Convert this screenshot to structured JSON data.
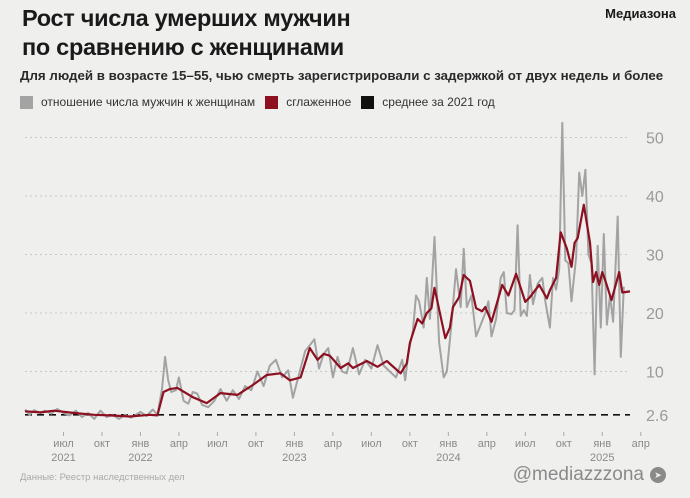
{
  "header": {
    "title_line1": "Рост числа умерших мужчин",
    "title_line2": "по сравнению с женщинами",
    "brand": "Медиазона",
    "subtitle": "Для людей в возрасте 15–55, чью смерть зарегистрировали с задержкой от двух недель и более"
  },
  "footer": {
    "source": "Данные: Реестр наследственных дел",
    "handle": "@mediazzzona",
    "icon": "telegram-icon"
  },
  "colors": {
    "raw": "#a3a3a3",
    "smoothed": "#8c1020",
    "mean": "#111111",
    "background": "#efefee"
  },
  "chart_data": {
    "type": "line",
    "title": "Рост числа умерших мужчин по сравнению с женщинами",
    "xlabel": "",
    "ylabel": "",
    "x_unit": "decimal year",
    "xlim": [
      2021.25,
      2025.18
    ],
    "ylim": [
      0,
      53
    ],
    "y_ticks": [
      {
        "value": 2.6,
        "label": "2.6"
      },
      {
        "value": 10,
        "label": "10"
      },
      {
        "value": 20,
        "label": "20"
      },
      {
        "value": 30,
        "label": "30"
      },
      {
        "value": 40,
        "label": "40"
      },
      {
        "value": 50,
        "label": "50"
      }
    ],
    "y_axis_side": "right",
    "grid": "horizontal dotted",
    "x_ticks": [
      {
        "value": 2021.5,
        "month": "июл",
        "year": "2021"
      },
      {
        "value": 2021.75,
        "month": "окт",
        "year": ""
      },
      {
        "value": 2022.0,
        "month": "янв",
        "year": "2022"
      },
      {
        "value": 2022.25,
        "month": "апр",
        "year": ""
      },
      {
        "value": 2022.5,
        "month": "июл",
        "year": ""
      },
      {
        "value": 2022.75,
        "month": "окт",
        "year": ""
      },
      {
        "value": 2023.0,
        "month": "янв",
        "year": "2023"
      },
      {
        "value": 2023.25,
        "month": "апр",
        "year": ""
      },
      {
        "value": 2023.5,
        "month": "июл",
        "year": ""
      },
      {
        "value": 2023.75,
        "month": "окт",
        "year": ""
      },
      {
        "value": 2024.0,
        "month": "янв",
        "year": "2024"
      },
      {
        "value": 2024.25,
        "month": "апр",
        "year": ""
      },
      {
        "value": 2024.5,
        "month": "июл",
        "year": ""
      },
      {
        "value": 2024.75,
        "month": "окт",
        "year": ""
      },
      {
        "value": 2025.0,
        "month": "янв",
        "year": "2025"
      },
      {
        "value": 2025.25,
        "month": "апр",
        "year": ""
      }
    ],
    "legend": [
      {
        "key": "raw",
        "label": "отношение числа мужчин к женщинам"
      },
      {
        "key": "smoothed",
        "label": "сглаженное"
      },
      {
        "key": "mean",
        "label": "среднее за 2021 год"
      }
    ],
    "legend_placement": "top",
    "mean_2021": 2.6,
    "series": [
      {
        "name": "отношение числа мужчин к женщинам",
        "key": "raw",
        "points": [
          [
            2021.25,
            3.5
          ],
          [
            2021.28,
            2.6
          ],
          [
            2021.31,
            3.4
          ],
          [
            2021.35,
            2.9
          ],
          [
            2021.38,
            3.3
          ],
          [
            2021.42,
            2.8
          ],
          [
            2021.46,
            3.6
          ],
          [
            2021.5,
            2.9
          ],
          [
            2021.54,
            2.5
          ],
          [
            2021.58,
            3.3
          ],
          [
            2021.62,
            2.2
          ],
          [
            2021.66,
            2.9
          ],
          [
            2021.7,
            1.9
          ],
          [
            2021.74,
            3.3
          ],
          [
            2021.78,
            2.2
          ],
          [
            2021.82,
            2.6
          ],
          [
            2021.86,
            1.9
          ],
          [
            2021.9,
            2.6
          ],
          [
            2021.94,
            2.1
          ],
          [
            2022.0,
            3.1
          ],
          [
            2022.04,
            2.4
          ],
          [
            2022.08,
            3.5
          ],
          [
            2022.11,
            2.6
          ],
          [
            2022.14,
            7.0
          ],
          [
            2022.16,
            12.5
          ],
          [
            2022.18,
            8.5
          ],
          [
            2022.2,
            6.5
          ],
          [
            2022.23,
            6.8
          ],
          [
            2022.25,
            9.0
          ],
          [
            2022.28,
            5.0
          ],
          [
            2022.31,
            4.5
          ],
          [
            2022.34,
            6.5
          ],
          [
            2022.37,
            6.2
          ],
          [
            2022.4,
            4.3
          ],
          [
            2022.44,
            3.9
          ],
          [
            2022.48,
            5.0
          ],
          [
            2022.52,
            7.0
          ],
          [
            2022.56,
            5.0
          ],
          [
            2022.6,
            6.8
          ],
          [
            2022.64,
            5.3
          ],
          [
            2022.68,
            7.5
          ],
          [
            2022.72,
            6.8
          ],
          [
            2022.76,
            10.0
          ],
          [
            2022.8,
            7.5
          ],
          [
            2022.84,
            11.0
          ],
          [
            2022.88,
            12.0
          ],
          [
            2022.92,
            9.0
          ],
          [
            2022.96,
            10.2
          ],
          [
            2022.99,
            5.5
          ],
          [
            2023.03,
            9.5
          ],
          [
            2023.07,
            13.5
          ],
          [
            2023.1,
            14.5
          ],
          [
            2023.13,
            15.5
          ],
          [
            2023.16,
            10.5
          ],
          [
            2023.19,
            13.0
          ],
          [
            2023.22,
            14.0
          ],
          [
            2023.25,
            9.0
          ],
          [
            2023.28,
            12.5
          ],
          [
            2023.31,
            10.0
          ],
          [
            2023.34,
            9.7
          ],
          [
            2023.38,
            14.0
          ],
          [
            2023.42,
            9.5
          ],
          [
            2023.46,
            12.0
          ],
          [
            2023.5,
            10.5
          ],
          [
            2023.54,
            14.5
          ],
          [
            2023.58,
            11.0
          ],
          [
            2023.62,
            10.0
          ],
          [
            2023.66,
            9.0
          ],
          [
            2023.7,
            12.0
          ],
          [
            2023.72,
            8.5
          ],
          [
            2023.74,
            13.0
          ],
          [
            2023.77,
            17.0
          ],
          [
            2023.79,
            23.0
          ],
          [
            2023.81,
            22.0
          ],
          [
            2023.84,
            17.5
          ],
          [
            2023.86,
            26.0
          ],
          [
            2023.88,
            19.0
          ],
          [
            2023.91,
            33.0
          ],
          [
            2023.94,
            15.0
          ],
          [
            2023.97,
            9.0
          ],
          [
            2023.99,
            10.0
          ],
          [
            2024.02,
            18.0
          ],
          [
            2024.05,
            27.5
          ],
          [
            2024.08,
            21.0
          ],
          [
            2024.1,
            31.0
          ],
          [
            2024.12,
            21.0
          ],
          [
            2024.15,
            23.0
          ],
          [
            2024.18,
            16.0
          ],
          [
            2024.21,
            18.0
          ],
          [
            2024.24,
            20.0
          ],
          [
            2024.26,
            22.0
          ],
          [
            2024.28,
            16.0
          ],
          [
            2024.31,
            19.0
          ],
          [
            2024.34,
            26.0
          ],
          [
            2024.36,
            27.0
          ],
          [
            2024.38,
            20.0
          ],
          [
            2024.41,
            19.8
          ],
          [
            2024.43,
            20.5
          ],
          [
            2024.45,
            35.0
          ],
          [
            2024.47,
            19.5
          ],
          [
            2024.49,
            20.5
          ],
          [
            2024.51,
            19.5
          ],
          [
            2024.53,
            26.5
          ],
          [
            2024.55,
            21.5
          ],
          [
            2024.58,
            25.0
          ],
          [
            2024.61,
            26.0
          ],
          [
            2024.63,
            22.0
          ],
          [
            2024.66,
            17.5
          ],
          [
            2024.68,
            26.0
          ],
          [
            2024.7,
            24.0
          ],
          [
            2024.72,
            27.5
          ],
          [
            2024.74,
            52.5
          ],
          [
            2024.76,
            29.0
          ],
          [
            2024.78,
            28.5
          ],
          [
            2024.8,
            22.0
          ],
          [
            2024.83,
            29.5
          ],
          [
            2024.85,
            44.0
          ],
          [
            2024.87,
            40.0
          ],
          [
            2024.89,
            44.5
          ],
          [
            2024.91,
            30.0
          ],
          [
            2024.93,
            28.5
          ],
          [
            2024.95,
            9.5
          ],
          [
            2024.97,
            31.5
          ],
          [
            2024.99,
            17.5
          ],
          [
            2025.01,
            33.5
          ],
          [
            2025.03,
            18.0
          ],
          [
            2025.05,
            23.0
          ],
          [
            2025.07,
            18.5
          ],
          [
            2025.1,
            36.5
          ],
          [
            2025.12,
            12.5
          ],
          [
            2025.14,
            24.5
          ]
        ]
      },
      {
        "name": "сглаженное",
        "key": "smoothed",
        "points": [
          [
            2021.25,
            3.2
          ],
          [
            2021.35,
            3.0
          ],
          [
            2021.44,
            3.3
          ],
          [
            2021.57,
            2.9
          ],
          [
            2021.7,
            2.6
          ],
          [
            2021.8,
            2.5
          ],
          [
            2021.93,
            2.3
          ],
          [
            2022.06,
            2.6
          ],
          [
            2022.11,
            2.5
          ],
          [
            2022.15,
            6.5
          ],
          [
            2022.19,
            7.0
          ],
          [
            2022.24,
            7.2
          ],
          [
            2022.29,
            6.4
          ],
          [
            2022.34,
            5.6
          ],
          [
            2022.43,
            4.6
          ],
          [
            2022.52,
            6.3
          ],
          [
            2022.63,
            6.0
          ],
          [
            2022.73,
            7.7
          ],
          [
            2022.82,
            9.4
          ],
          [
            2022.91,
            9.7
          ],
          [
            2022.97,
            8.5
          ],
          [
            2023.04,
            9.0
          ],
          [
            2023.1,
            14.0
          ],
          [
            2023.15,
            12.0
          ],
          [
            2023.19,
            13.0
          ],
          [
            2023.23,
            12.7
          ],
          [
            2023.3,
            10.6
          ],
          [
            2023.35,
            11.4
          ],
          [
            2023.38,
            10.6
          ],
          [
            2023.47,
            11.8
          ],
          [
            2023.54,
            10.8
          ],
          [
            2023.6,
            11.8
          ],
          [
            2023.69,
            9.7
          ],
          [
            2023.73,
            11.4
          ],
          [
            2023.75,
            14.9
          ],
          [
            2023.8,
            19.0
          ],
          [
            2023.83,
            18.2
          ],
          [
            2023.86,
            20.0
          ],
          [
            2023.89,
            20.8
          ],
          [
            2023.91,
            24.3
          ],
          [
            2023.98,
            15.7
          ],
          [
            2024.01,
            17.5
          ],
          [
            2024.03,
            21.0
          ],
          [
            2024.07,
            22.7
          ],
          [
            2024.1,
            26.5
          ],
          [
            2024.14,
            25.5
          ],
          [
            2024.18,
            20.8
          ],
          [
            2024.22,
            20.3
          ],
          [
            2024.24,
            21.0
          ],
          [
            2024.28,
            18.5
          ],
          [
            2024.35,
            24.8
          ],
          [
            2024.39,
            23.0
          ],
          [
            2024.44,
            26.7
          ],
          [
            2024.5,
            21.9
          ],
          [
            2024.53,
            22.7
          ],
          [
            2024.59,
            24.8
          ],
          [
            2024.64,
            22.5
          ],
          [
            2024.66,
            23.9
          ],
          [
            2024.7,
            26.0
          ],
          [
            2024.73,
            33.8
          ],
          [
            2024.77,
            31.0
          ],
          [
            2024.8,
            27.9
          ],
          [
            2024.82,
            32.0
          ],
          [
            2024.84,
            32.8
          ],
          [
            2024.88,
            38.5
          ],
          [
            2024.92,
            32.0
          ],
          [
            2024.94,
            25.3
          ],
          [
            2024.96,
            27.0
          ],
          [
            2024.98,
            24.8
          ],
          [
            2025.0,
            27.0
          ],
          [
            2025.02,
            25.5
          ],
          [
            2025.06,
            22.2
          ],
          [
            2025.11,
            27.0
          ],
          [
            2025.13,
            23.5
          ],
          [
            2025.18,
            23.7
          ]
        ]
      }
    ]
  }
}
